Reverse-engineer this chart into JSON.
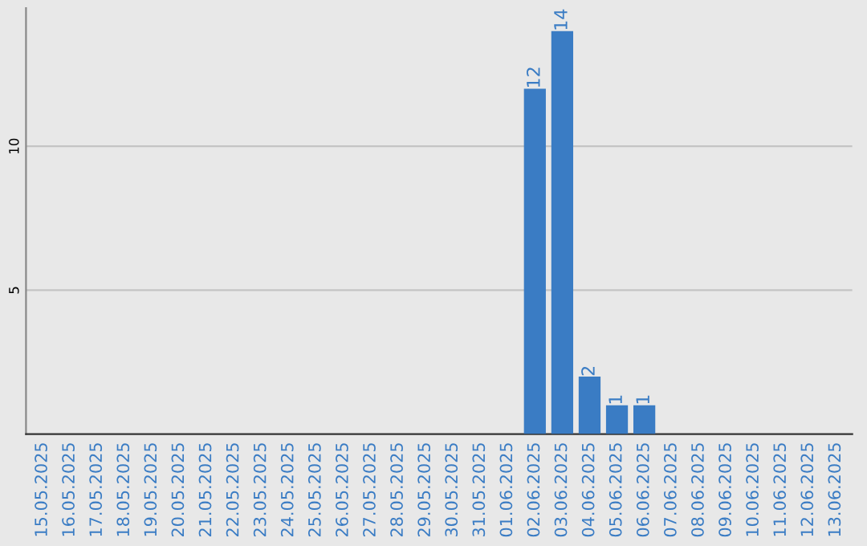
{
  "chart_data": {
    "type": "bar",
    "categories": [
      "15.05.2025",
      "16.05.2025",
      "17.05.2025",
      "18.05.2025",
      "19.05.2025",
      "20.05.2025",
      "21.05.2025",
      "22.05.2025",
      "23.05.2025",
      "24.05.2025",
      "25.05.2025",
      "26.05.2025",
      "27.05.2025",
      "28.05.2025",
      "29.05.2025",
      "30.05.2025",
      "31.05.2025",
      "01.06.2025",
      "02.06.2025",
      "03.06.2025",
      "04.06.2025",
      "05.06.2025",
      "06.06.2025",
      "07.06.2025",
      "08.06.2025",
      "09.06.2025",
      "10.06.2025",
      "11.06.2025",
      "12.06.2025",
      "13.06.2025"
    ],
    "values": [
      0,
      0,
      0,
      0,
      0,
      0,
      0,
      0,
      0,
      0,
      0,
      0,
      0,
      0,
      0,
      0,
      0,
      0,
      12,
      14,
      2,
      1,
      1,
      0,
      0,
      0,
      0,
      0,
      0,
      0
    ],
    "value_labels": [
      null,
      null,
      null,
      null,
      null,
      null,
      null,
      null,
      null,
      null,
      null,
      null,
      null,
      null,
      null,
      null,
      null,
      null,
      "12",
      "14",
      "2",
      "1",
      "1",
      null,
      null,
      null,
      null,
      null,
      null,
      null
    ],
    "color": "#3a7cc4",
    "ylim": [
      0,
      14.8
    ],
    "yticks": [
      5,
      10
    ],
    "grid": "y"
  }
}
